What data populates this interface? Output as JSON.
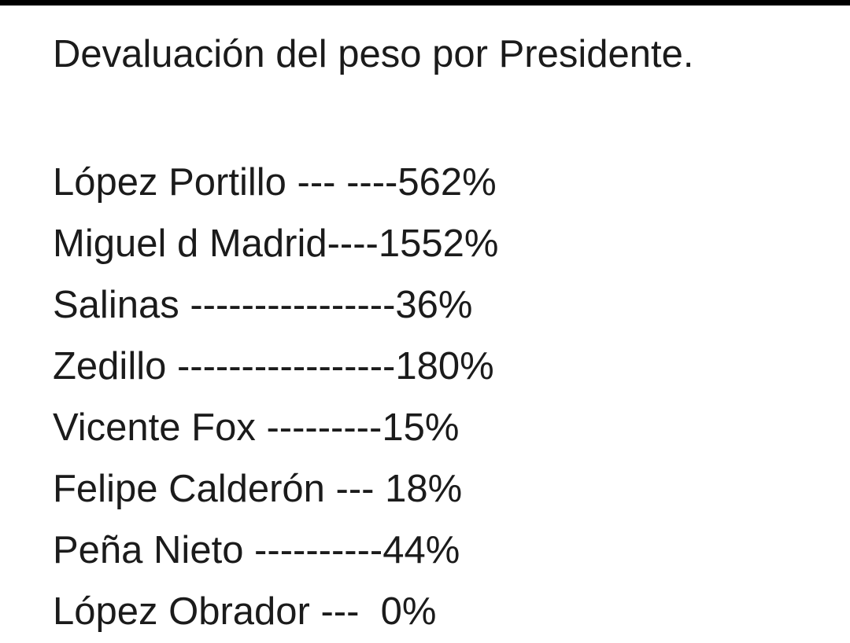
{
  "post": {
    "title": "Devaluación del peso por Presidente.",
    "lines": [
      "López Portillo --- ----562%",
      "Miguel d Madrid----1552%",
      "Salinas ----------------36%",
      "Zedillo -----------------180%",
      "Vicente Fox ---------15%",
      "Felipe Calderón --- 18%",
      "Peña Nieto ----------44%",
      "López Obrador ---  0%"
    ]
  }
}
